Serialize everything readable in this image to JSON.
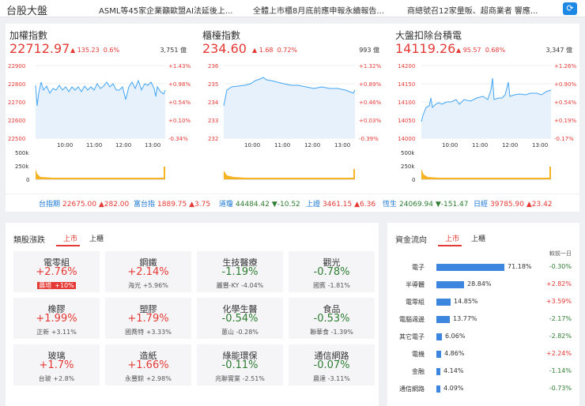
{
  "header": {
    "title": "台股大盤",
    "news": [
      "ASML等45家企業籲歐盟AI法延後上...",
      "全體上市櫃8月底前應申報永續報告...",
      "商總號召12家量販、超商業者 響應..."
    ]
  },
  "panels": [
    {
      "name": "加權指數",
      "value": "22712.97",
      "change": "135.23",
      "pct": "0.6%",
      "volume": "3,751 億",
      "y_ticks": [
        "22900",
        "22800",
        "22700",
        "22600",
        "22500"
      ],
      "pct_ticks": [
        "+1.43%",
        "+0.98%",
        "+0.54%",
        "+0.10%",
        "-0.34%"
      ],
      "x_ticks": [
        "10:00",
        "11:00",
        "12:00",
        "13:00"
      ],
      "vol_ticks": [
        "500k",
        "250k",
        "0"
      ]
    },
    {
      "name": "櫃檯指數",
      "value": "234.60",
      "change": "1.68",
      "pct": "0.72%",
      "volume": "993 億",
      "y_ticks": [
        "236",
        "235",
        "234",
        "233",
        "232"
      ],
      "pct_ticks": [
        "+1.32%",
        "+0.89%",
        "+0.46%",
        "+0.03%",
        "-0.39%"
      ],
      "x_ticks": [
        "10:00",
        "11:00",
        "12:00",
        "13:00"
      ],
      "vol_ticks": [
        "500k",
        "250k",
        "0"
      ]
    },
    {
      "name": "大盤扣除台積電",
      "value": "14119.26",
      "change": "95.57",
      "pct": "0.68%",
      "volume": "3,347 億",
      "y_ticks": [
        "14200",
        "14150",
        "14100",
        "14050",
        "14000"
      ],
      "pct_ticks": [
        "+1.26%",
        "+0.90%",
        "+0.54%",
        "+0.19%",
        "-0.17%"
      ],
      "x_ticks": [
        "10:00",
        "11:00",
        "12:00",
        "13:00"
      ],
      "vol_ticks": [
        "500k",
        "250k",
        "0"
      ]
    }
  ],
  "ticker": [
    {
      "name": "台指期",
      "value": "22675.00",
      "chg": "▲282.00",
      "dir": "up"
    },
    {
      "name": "富台指",
      "value": "1889.75",
      "chg": "▲3.75",
      "dir": "up"
    },
    {
      "name": "道瓊",
      "value": "44484.42",
      "chg": "▼-10.52",
      "dir": "dn"
    },
    {
      "name": "上證",
      "value": "3461.15",
      "chg": "▲6.36",
      "dir": "up"
    },
    {
      "name": "恆生",
      "value": "24069.94",
      "chg": "▼-151.47",
      "dir": "dn"
    },
    {
      "name": "日經",
      "value": "39785.90",
      "chg": "▲23.42",
      "dir": "up"
    }
  ],
  "sectors": {
    "title": "類股漲跌",
    "tabs": [
      "上市",
      "上櫃"
    ],
    "cards": [
      {
        "name": "電零組",
        "value": "+2.76%",
        "sub": "晨塔",
        "subval": "+10%",
        "dir": "up",
        "badge": true
      },
      {
        "name": "鋼鐵",
        "value": "+2.14%",
        "sub": "海光",
        "subval": "+5.96%",
        "dir": "up"
      },
      {
        "name": "生技醫療",
        "value": "-1.19%",
        "sub": "麗豐-KY",
        "subval": "-4.04%",
        "dir": "dn"
      },
      {
        "name": "觀光",
        "value": "-0.78%",
        "sub": "國賓",
        "subval": "-1.81%",
        "dir": "dn"
      },
      {
        "name": "橡膠",
        "value": "+1.99%",
        "sub": "正新",
        "subval": "+3.11%",
        "dir": "up"
      },
      {
        "name": "塑膠",
        "value": "+1.79%",
        "sub": "國喬特",
        "subval": "+3.33%",
        "dir": "up"
      },
      {
        "name": "化學生醫",
        "value": "-0.54%",
        "sub": "蔥山",
        "subval": "-0.28%",
        "dir": "dn"
      },
      {
        "name": "食品",
        "value": "-0.53%",
        "sub": "聯華食",
        "subval": "-1.39%",
        "dir": "dn"
      },
      {
        "name": "玻璃",
        "value": "+1.7%",
        "sub": "台玻",
        "subval": "+2.8%",
        "dir": "up"
      },
      {
        "name": "造紙",
        "value": "+1.66%",
        "sub": "永豐餘",
        "subval": "+2.98%",
        "dir": "up"
      },
      {
        "name": "綠能環保",
        "value": "-0.11%",
        "sub": "兆聯實業",
        "subval": "-2.51%",
        "dir": "dn"
      },
      {
        "name": "通信網路",
        "value": "-0.07%",
        "sub": "晨達",
        "subval": "-3.11%",
        "dir": "dn"
      }
    ]
  },
  "flow": {
    "title": "資金流向",
    "tabs": [
      "上市",
      "上櫃"
    ],
    "col_header": "較前一日",
    "rows": [
      {
        "name": "電子",
        "pct": 71.18,
        "label": "71.18%",
        "diff": "-0.30%",
        "dir": "dn"
      },
      {
        "name": "半導體",
        "pct": 28.84,
        "label": "28.84%",
        "diff": "+2.82%",
        "dir": "up"
      },
      {
        "name": "電零組",
        "pct": 14.85,
        "label": "14.85%",
        "diff": "+3.59%",
        "dir": "up"
      },
      {
        "name": "電腦週邊",
        "pct": 13.77,
        "label": "13.77%",
        "diff": "-2.17%",
        "dir": "dn"
      },
      {
        "name": "其它電子",
        "pct": 6.06,
        "label": "6.06%",
        "diff": "-2.82%",
        "dir": "dn"
      },
      {
        "name": "電機",
        "pct": 4.86,
        "label": "4.86%",
        "diff": "+2.24%",
        "dir": "up"
      },
      {
        "name": "金融",
        "pct": 4.14,
        "label": "4.14%",
        "diff": "-1.14%",
        "dir": "dn"
      },
      {
        "name": "通信網路",
        "pct": 4.09,
        "label": "4.09%",
        "diff": "-0.73%",
        "dir": "dn"
      }
    ]
  }
}
